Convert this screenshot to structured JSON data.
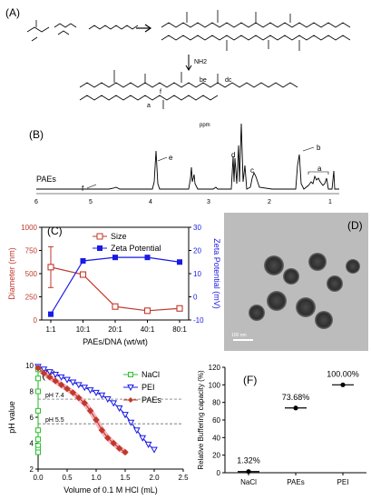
{
  "panels": {
    "A": {
      "label": "(A)",
      "text_labels": [
        "a",
        "be",
        "dc",
        "f",
        "NH2"
      ]
    },
    "B": {
      "label": "(B)",
      "sample": "PAEs",
      "axis_unit": "ppm",
      "ticks": [
        "6",
        "5",
        "4",
        "3",
        "2",
        "1"
      ],
      "peak_labels": [
        "e",
        "f",
        "d",
        "c",
        "b",
        "a"
      ]
    },
    "C": {
      "label": "(C)"
    },
    "D": {
      "label": "(D)",
      "scale_bar": "100 nm"
    },
    "E": {
      "label": "(E)",
      "ref_lines": [
        "pH 7.4",
        "pH 5.5"
      ]
    },
    "F": {
      "label": "(F)"
    }
  },
  "colors": {
    "size": "#c0392b",
    "zeta": "#1a1ae6",
    "nacl": "#2ec22e",
    "pei": "#1a1ae6",
    "paes": "#c0392b",
    "paes_halo": "#f4b6c2"
  },
  "chart_data": [
    {
      "id": "C",
      "type": "line",
      "categories": [
        "1:1",
        "10:1",
        "20:1",
        "40:1",
        "80:1"
      ],
      "xlabel": "PAEs/DNA (wt/wt)",
      "ylabel": "Diameter (nm)",
      "ylabel_right": "Zeta Potential (mV)",
      "ylim": [
        0,
        1000
      ],
      "yticks": [
        0,
        250,
        500,
        750,
        1000
      ],
      "ylim_right": [
        -10,
        30
      ],
      "yticks_right": [
        -10,
        0,
        10,
        20,
        30
      ],
      "legend_position": "top-right",
      "series": [
        {
          "name": "Size",
          "axis": "left",
          "values": [
            570,
            490,
            145,
            100,
            125
          ],
          "errors": [
            220,
            0,
            0,
            0,
            0
          ]
        },
        {
          "name": "Zeta Potential",
          "axis": "right",
          "values": [
            -7.5,
            15.5,
            17,
            17,
            15
          ]
        }
      ]
    },
    {
      "id": "E",
      "type": "line",
      "xlabel": "Volume of 0.1 M HCl (mL)",
      "ylabel": "pH value",
      "xlim": [
        0,
        2.5
      ],
      "xticks": [
        "0.0",
        "0.5",
        "1.0",
        "1.5",
        "2.0",
        "2.5"
      ],
      "ylim": [
        2,
        10
      ],
      "yticks": [
        2,
        4,
        6,
        8,
        10
      ],
      "legend_position": "top-right",
      "reference_lines": [
        7.4,
        5.5
      ],
      "series": [
        {
          "name": "NaCl",
          "x": [
            0,
            0,
            0,
            0,
            0,
            0,
            0,
            0,
            0
          ],
          "y": [
            9.7,
            9.0,
            8.0,
            6.5,
            5.0,
            4.3,
            3.8,
            3.5,
            3.3
          ]
        },
        {
          "name": "PEI",
          "x": [
            0,
            0.1,
            0.2,
            0.3,
            0.4,
            0.5,
            0.6,
            0.7,
            0.8,
            0.9,
            1.0,
            1.1,
            1.2,
            1.3,
            1.4,
            1.5,
            1.6,
            1.7,
            1.8,
            1.9,
            2.0
          ],
          "y": [
            9.9,
            9.7,
            9.5,
            9.3,
            9.1,
            8.9,
            8.7,
            8.5,
            8.3,
            8.1,
            7.9,
            7.7,
            7.4,
            7.1,
            6.7,
            6.2,
            5.6,
            5.0,
            4.4,
            3.9,
            3.5
          ]
        },
        {
          "name": "PAEs",
          "x": [
            0,
            0.1,
            0.2,
            0.3,
            0.4,
            0.5,
            0.6,
            0.7,
            0.8,
            0.9,
            1.0,
            1.1,
            1.2,
            1.3,
            1.4,
            1.5
          ],
          "y": [
            9.8,
            9.4,
            9.1,
            8.8,
            8.5,
            8.2,
            7.9,
            7.5,
            7.1,
            6.5,
            5.8,
            5.0,
            4.4,
            4.0,
            3.6,
            3.3
          ]
        }
      ]
    },
    {
      "id": "F",
      "type": "scatter",
      "categories": [
        "NaCl",
        "PAEs",
        "PEI"
      ],
      "ylabel": "Relative Buffering capacity (%)",
      "ylim": [
        0,
        120
      ],
      "yticks": [
        0,
        20,
        40,
        60,
        80,
        100,
        120
      ],
      "values": [
        1.32,
        73.68,
        100.0
      ],
      "data_labels": [
        "1.32%",
        "73.68%",
        "100.00%"
      ]
    }
  ]
}
